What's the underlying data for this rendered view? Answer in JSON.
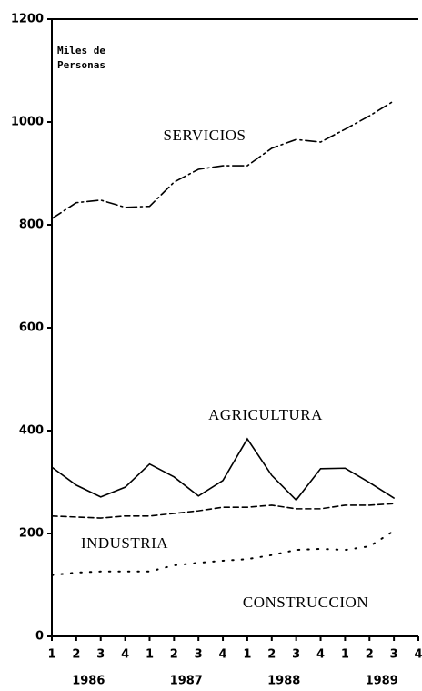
{
  "chart_data": {
    "type": "line",
    "annotations": [
      "Miles de",
      "Personas"
    ],
    "categories": [
      "1",
      "2",
      "3",
      "4",
      "1",
      "2",
      "3",
      "4",
      "1",
      "2",
      "3",
      "4",
      "1",
      "2",
      "3",
      "4"
    ],
    "x_groups": [
      "1986",
      "1987",
      "1988",
      "1989"
    ],
    "series": [
      {
        "name": "SERVICIOS",
        "color": "#000000",
        "style": "dashdot",
        "values": [
          812,
          843,
          848,
          834,
          836,
          883,
          908,
          915,
          915,
          949,
          966,
          961,
          986,
          1012,
          1041,
          null
        ]
      },
      {
        "name": "AGRICULTURA",
        "color": "#000000",
        "style": "solid",
        "values": [
          329,
          294,
          271,
          290,
          335,
          310,
          273,
          303,
          384,
          313,
          265,
          326,
          327,
          299,
          269,
          null
        ]
      },
      {
        "name": "INDUSTRIA",
        "color": "#000000",
        "style": "dashed",
        "values": [
          234,
          232,
          230,
          234,
          234,
          239,
          244,
          251,
          251,
          255,
          248,
          248,
          255,
          255,
          258,
          null
        ]
      },
      {
        "name": "CONSTRUCCION",
        "color": "#000000",
        "style": "dotted",
        "values": [
          119,
          124,
          126,
          126,
          126,
          138,
          143,
          147,
          150,
          158,
          168,
          170,
          168,
          175,
          205,
          null
        ]
      }
    ],
    "ylim": [
      0,
      1200
    ],
    "yticks": [
      0,
      200,
      400,
      600,
      800,
      1000,
      1200
    ]
  }
}
